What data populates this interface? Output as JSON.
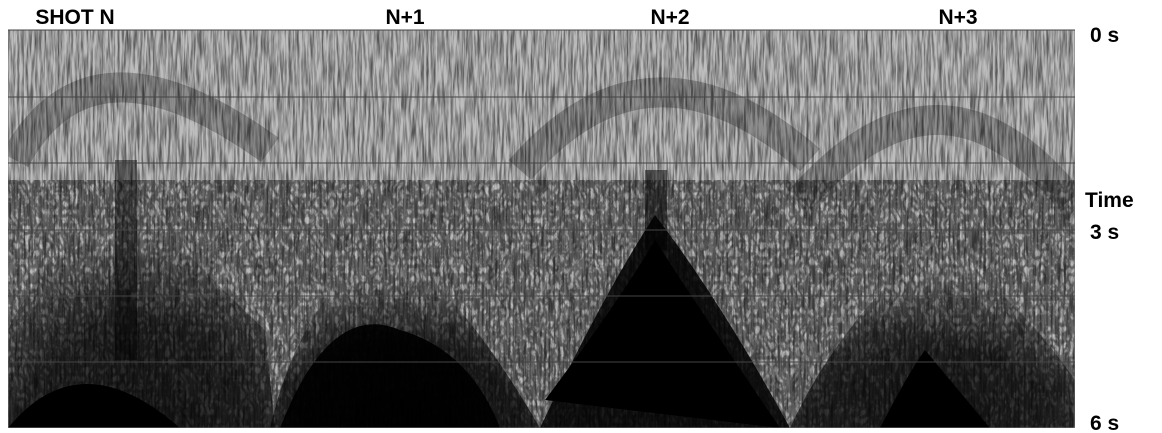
{
  "shot_labels": [
    "SHOT N",
    "N+1",
    "N+2",
    "N+3"
  ],
  "time_axis": {
    "top": "0 s",
    "title": "Time",
    "middle": "3 s",
    "bottom": "6 s"
  }
}
